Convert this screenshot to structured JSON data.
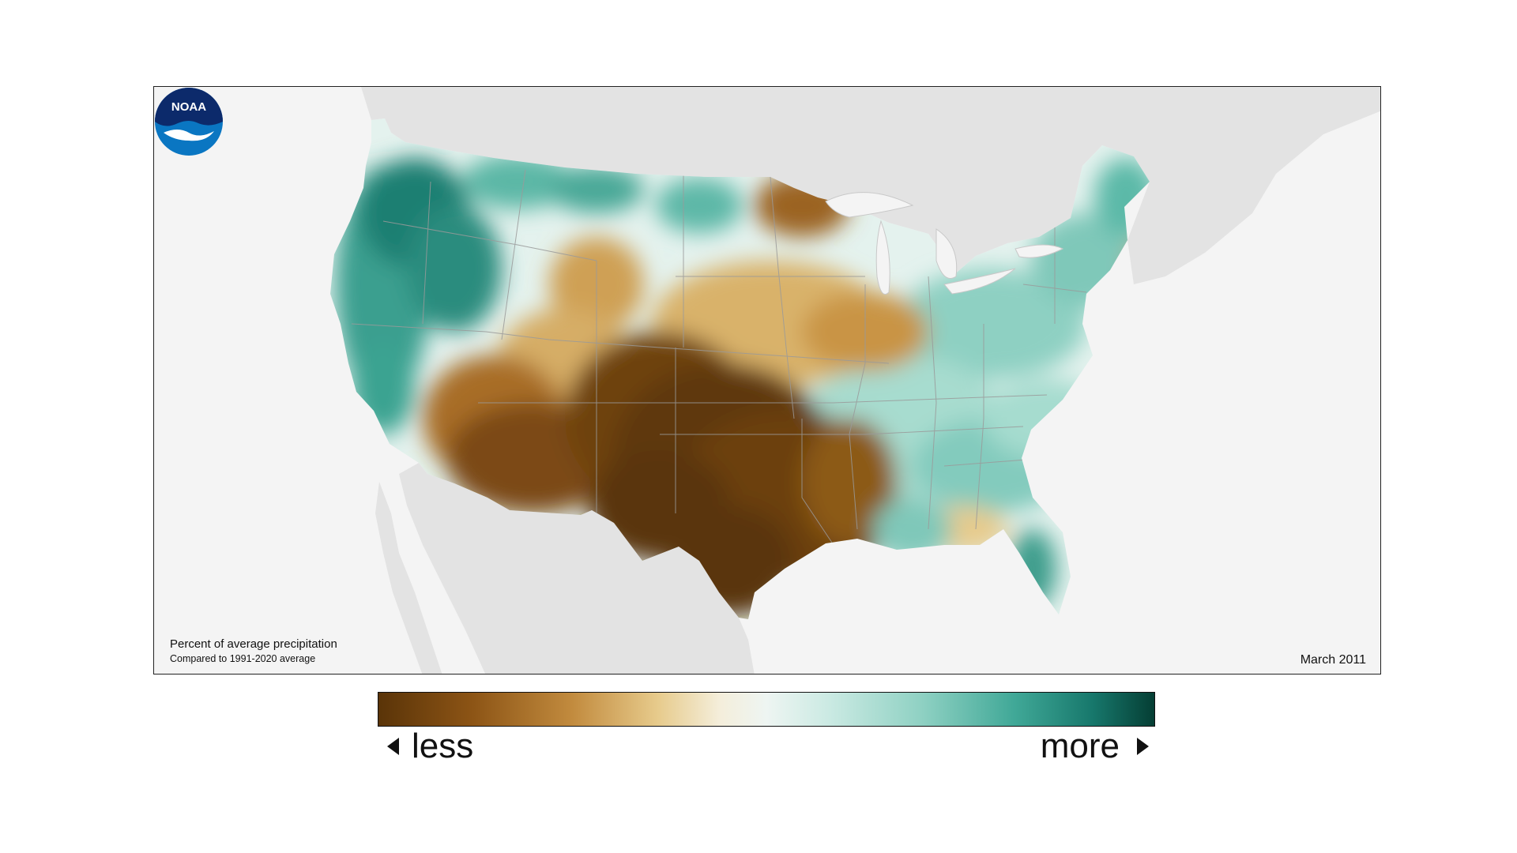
{
  "map": {
    "title": "Percent of average precipitation",
    "subtitle": "Compared to 1991-2020 average",
    "date": "March 2011",
    "logo_text": "NOAA"
  },
  "legend": {
    "less_label": "less",
    "more_label": "more",
    "colors": [
      "#5a3408",
      "#8c5415",
      "#c28b3e",
      "#e7cb8c",
      "#f4eedb",
      "#eef5f2",
      "#cbeae3",
      "#8fd1c3",
      "#40a897",
      "#17786c",
      "#053e34"
    ]
  },
  "colors": {
    "land_background": "#e3e3e3",
    "water": "#f4f4f4",
    "state_lines": "#9a9a9a"
  }
}
